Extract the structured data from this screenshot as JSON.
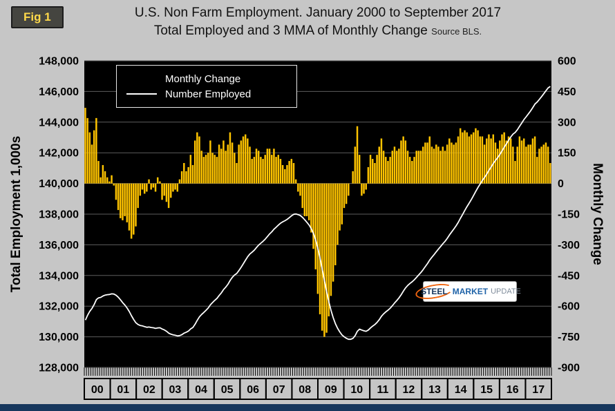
{
  "fig_label": "Fig 1",
  "title": {
    "line1": "U.S. Non Farm Employment. January 2000 to September 2017",
    "line2": "Total Employed and 3 MMA of Monthly Change",
    "source": "Source BLS."
  },
  "legend": {
    "bar_label": "Monthly Change",
    "line_label": "Number Employed"
  },
  "logo": {
    "steel": "STEEL",
    "market": "MARKET",
    "update": "UPDATE"
  },
  "axes": {
    "left_title": "Total Employment 1,000s",
    "right_title": "Monthly Change",
    "left_ticks": [
      "148,000",
      "146,000",
      "144,000",
      "142,000",
      "140,000",
      "138,000",
      "136,000",
      "134,000",
      "132,000",
      "130,000",
      "128,000"
    ],
    "right_ticks": [
      "600",
      "450",
      "300",
      "150",
      "0",
      "-150",
      "-300",
      "-450",
      "-600",
      "-750",
      "-900"
    ],
    "x_labels": [
      "00",
      "01",
      "02",
      "03",
      "04",
      "05",
      "06",
      "07",
      "08",
      "09",
      "10",
      "11",
      "12",
      "13",
      "14",
      "15",
      "16",
      "17"
    ],
    "left_min": 128000,
    "left_max": 148000,
    "right_min": -900,
    "right_max": 600
  },
  "colors": {
    "bar": "#FFC400",
    "line": "#FFFFFF",
    "plot_bg": "#000000",
    "page_bg": "#C6C6C6",
    "grid": "#5E5E5E",
    "bottom_bar": "#17375D",
    "badge_text": "#FFD94A"
  },
  "chart_data": {
    "type": "bar+line combo",
    "title": "U.S. Non Farm Employment. January 2000 to September 2017 — Total Employed and 3 MMA of Monthly Change",
    "x_start": "Jan 2000",
    "x_end": "Sep 2017",
    "x_year_labels": [
      "00",
      "01",
      "02",
      "03",
      "04",
      "05",
      "06",
      "07",
      "08",
      "09",
      "10",
      "11",
      "12",
      "13",
      "14",
      "15",
      "16",
      "17"
    ],
    "left_axis": {
      "label": "Total Employment 1,000s",
      "min": 128000,
      "max": 148000,
      "step": 2000
    },
    "right_axis": {
      "label": "Monthly Change",
      "min": -900,
      "max": 600,
      "step": 150
    },
    "legend_position": "top-left inside plot",
    "grid": true,
    "series": [
      {
        "name": "Monthly Change",
        "type": "bar",
        "axis": "right",
        "color": "#FFC400",
        "values": [
          370,
          320,
          250,
          190,
          260,
          320,
          110,
          30,
          90,
          60,
          30,
          10,
          40,
          -10,
          -80,
          -130,
          -170,
          -180,
          -160,
          -190,
          -230,
          -270,
          -250,
          -210,
          -120,
          -60,
          -30,
          -50,
          -40,
          20,
          -30,
          -20,
          -40,
          30,
          10,
          -80,
          -60,
          -90,
          -120,
          -70,
          -40,
          -30,
          -40,
          20,
          60,
          100,
          60,
          80,
          140,
          90,
          210,
          250,
          230,
          160,
          130,
          140,
          150,
          210,
          150,
          140,
          130,
          190,
          170,
          210,
          160,
          190,
          250,
          200,
          150,
          100,
          190,
          210,
          230,
          240,
          220,
          180,
          120,
          130,
          170,
          160,
          130,
          120,
          140,
          170,
          170,
          140,
          170,
          130,
          140,
          120,
          90,
          70,
          90,
          110,
          120,
          100,
          20,
          -40,
          -60,
          -120,
          -160,
          -160,
          -180,
          -240,
          -320,
          -420,
          -540,
          -640,
          -720,
          -750,
          -730,
          -650,
          -550,
          -480,
          -400,
          -300,
          -230,
          -200,
          -120,
          -100,
          -60,
          0,
          60,
          180,
          280,
          140,
          -60,
          -50,
          -30,
          80,
          140,
          120,
          100,
          140,
          180,
          220,
          160,
          130,
          110,
          130,
          160,
          180,
          160,
          170,
          210,
          230,
          210,
          160,
          130,
          110,
          130,
          160,
          160,
          160,
          180,
          200,
          200,
          230,
          180,
          170,
          190,
          180,
          160,
          180,
          160,
          190,
          220,
          200,
          190,
          200,
          230,
          270,
          250,
          260,
          250,
          230,
          240,
          250,
          270,
          260,
          230,
          230,
          190,
          220,
          240,
          220,
          240,
          200,
          170,
          210,
          240,
          250,
          210,
          230,
          220,
          180,
          110,
          180,
          230,
          210,
          220,
          180,
          190,
          190,
          220,
          230,
          130,
          170,
          180,
          190,
          200,
          180,
          100
        ]
      },
      {
        "name": "Number Employed",
        "type": "line",
        "axis": "left",
        "color": "#FFFFFF",
        "values": [
          131090,
          131410,
          131660,
          131850,
          132110,
          132430,
          132540,
          132570,
          132660,
          132720,
          132750,
          132760,
          132800,
          132790,
          132710,
          132580,
          132410,
          132230,
          132070,
          131880,
          131650,
          131380,
          131130,
          130920,
          130800,
          130740,
          130710,
          130660,
          130620,
          130640,
          130610,
          130590,
          130550,
          130580,
          130590,
          130510,
          130450,
          130360,
          130240,
          130170,
          130130,
          130100,
          130060,
          130080,
          130140,
          130240,
          130300,
          130380,
          130520,
          130610,
          130820,
          131070,
          131300,
          131460,
          131590,
          131730,
          131880,
          132090,
          132240,
          132380,
          132510,
          132700,
          132870,
          133080,
          133240,
          133430,
          133680,
          133880,
          134030,
          134130,
          134320,
          134530,
          134760,
          135000,
          135220,
          135400,
          135520,
          135650,
          135820,
          135980,
          136110,
          136230,
          136370,
          136540,
          136710,
          136850,
          137020,
          137150,
          137290,
          137410,
          137500,
          137570,
          137660,
          137770,
          137890,
          137990,
          138010,
          137970,
          137910,
          137790,
          137630,
          137470,
          137290,
          137050,
          136730,
          136310,
          135770,
          135130,
          134410,
          133660,
          132930,
          132280,
          131730,
          131250,
          130850,
          130550,
          130320,
          130120,
          130000,
          129900,
          129840,
          129840,
          129900,
          130080,
          130360,
          130500,
          130440,
          130390,
          130360,
          130440,
          130580,
          130700,
          130800,
          130940,
          131120,
          131340,
          131500,
          131630,
          131740,
          131870,
          132030,
          132210,
          132370,
          132540,
          132750,
          132980,
          133190,
          133350,
          133480,
          133590,
          133720,
          133880,
          134040,
          134200,
          134380,
          134580,
          134780,
          135010,
          135190,
          135360,
          135550,
          135730,
          135890,
          136070,
          136230,
          136420,
          136640,
          136840,
          137030,
          137230,
          137460,
          137730,
          137980,
          138240,
          138490,
          138720,
          138960,
          139210,
          139480,
          139740,
          139970,
          140200,
          140390,
          140610,
          140850,
          141070,
          141310,
          141510,
          141680,
          141890,
          142130,
          142380,
          142590,
          142820,
          143040,
          143220,
          143330,
          143510,
          143740,
          143950,
          144170,
          144350,
          144540,
          144730,
          144950,
          145180,
          145310,
          145480,
          145660,
          145850,
          146050,
          146230,
          146330
        ]
      }
    ]
  }
}
